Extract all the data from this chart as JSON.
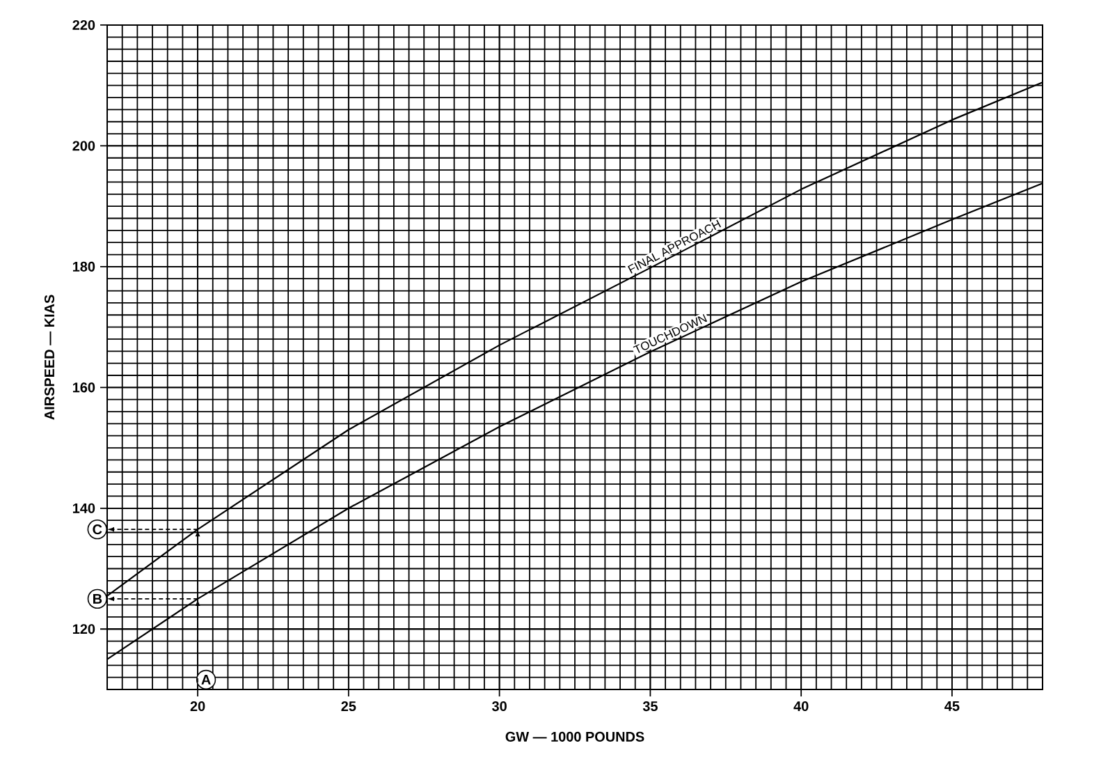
{
  "chart_data": {
    "type": "line",
    "xlabel": "GW — 1000 POUNDS",
    "ylabel": "AIRSPEED — KIAS",
    "x": [
      17,
      20,
      25,
      30,
      35,
      40,
      45,
      48
    ],
    "series": [
      {
        "name": "FINAL APPROACH",
        "color": "#000000",
        "values": [
          125.5,
          136.5,
          153,
          167,
          179.8,
          192.8,
          204.3,
          210.5
        ]
      },
      {
        "name": "TOUCHDOWN",
        "color": "#000000",
        "values": [
          115,
          125,
          140,
          153.5,
          165.9,
          177.5,
          187.8,
          193.8
        ]
      }
    ],
    "annotations": [
      {
        "text": "A",
        "x": 20,
        "y": 125
      },
      "B",
      "C"
    ],
    "xlim": [
      17,
      48
    ],
    "ylim": [
      110,
      220
    ],
    "xticks": [
      20,
      25,
      30,
      35,
      40,
      45
    ],
    "yticks": [
      120,
      140,
      160,
      180,
      200,
      220
    ],
    "grid": true,
    "legend": false,
    "marker": "none",
    "line_style": "solid"
  }
}
